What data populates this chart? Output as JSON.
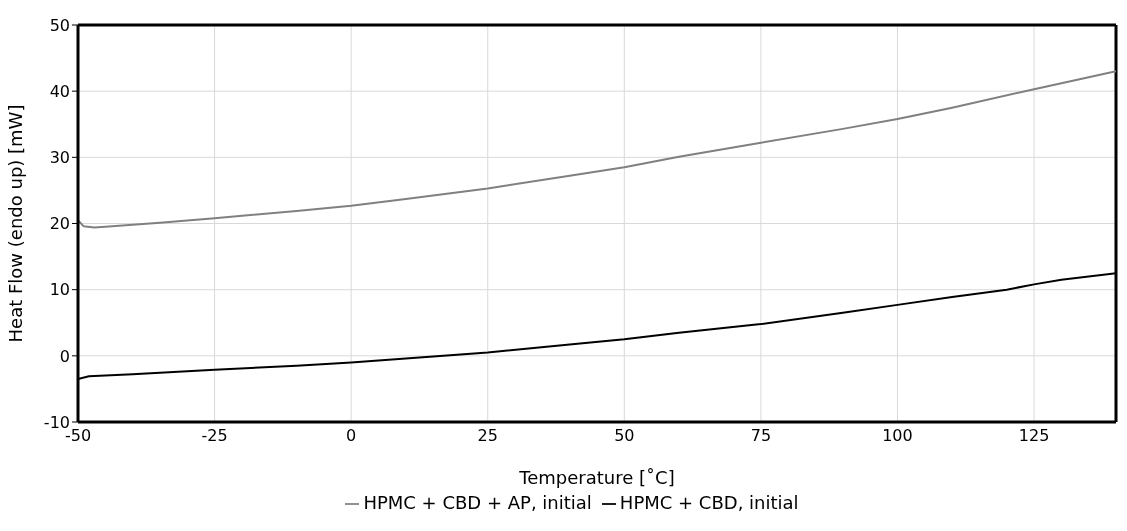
{
  "chart_data": {
    "type": "line",
    "xlabel": "Temperature [˚C]",
    "ylabel": "Heat Flow (endo up) [mW]",
    "xlim": [
      -50,
      140
    ],
    "xticks": [
      -50,
      -25,
      0,
      25,
      50,
      75,
      100,
      125
    ],
    "ylim": [
      -10,
      50
    ],
    "yticks": [
      -10,
      0,
      10,
      20,
      30,
      40,
      50
    ],
    "grid": true,
    "legend": "bottom",
    "marker": "none",
    "line_style": "solid",
    "series": [
      {
        "name": "HPMC + CBD, initial",
        "color": "#000000",
        "x": [
          -50,
          -48,
          -40,
          -25,
          -10,
          0,
          10,
          25,
          40,
          50,
          60,
          75,
          90,
          100,
          110,
          120,
          125,
          130,
          135,
          140
        ],
        "values": [
          -3.5,
          -3.1,
          -2.8,
          -2.1,
          -1.5,
          -1.0,
          -0.4,
          0.5,
          1.7,
          2.5,
          3.5,
          4.8,
          6.5,
          7.7,
          8.9,
          10.0,
          10.8,
          11.5,
          12.0,
          12.5
        ]
      },
      {
        "name": "HPMC + CBD + AP, initial",
        "color": "#808080",
        "x": [
          -50,
          -49,
          -47,
          -45,
          -35,
          -25,
          -10,
          0,
          10,
          25,
          40,
          50,
          60,
          75,
          90,
          100,
          110,
          125,
          135,
          140
        ],
        "values": [
          20.5,
          19.6,
          19.4,
          19.5,
          20.1,
          20.8,
          21.9,
          22.7,
          23.7,
          25.3,
          27.2,
          28.5,
          30.1,
          32.2,
          34.3,
          35.8,
          37.5,
          40.3,
          42.1,
          43.0
        ]
      }
    ]
  }
}
